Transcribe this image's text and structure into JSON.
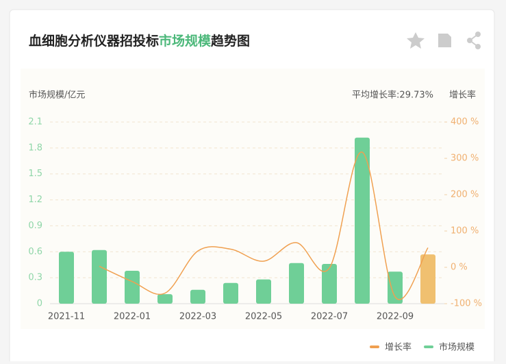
{
  "chart_data": {
    "type": "bar-line",
    "title": {
      "prefix": "血细胞分析仪器招投标",
      "highlight": "市场规模",
      "suffix": "趋势图"
    },
    "y_label": "市场规模/亿元",
    "y2_label": "增长率",
    "annotation": "平均增长率:29.73%",
    "categories": [
      "2021-11",
      null,
      "2022-01",
      null,
      "2022-03",
      null,
      "2022-05",
      null,
      "2022-07",
      null,
      "2022-09",
      null
    ],
    "series": [
      {
        "name": "市场规模",
        "type": "bar",
        "color": "#6fcf97",
        "colors": [
          "#6fcf97",
          "#6fcf97",
          "#6fcf97",
          "#6fcf97",
          "#6fcf97",
          "#6fcf97",
          "#6fcf97",
          "#6fcf97",
          "#6fcf97",
          "#6fcf97",
          "#6fcf97",
          "#f0c070"
        ],
        "values": [
          0.6,
          0.62,
          0.38,
          0.11,
          0.16,
          0.24,
          0.28,
          0.47,
          0.46,
          1.92,
          0.37,
          0.57
        ]
      },
      {
        "name": "增长率",
        "type": "line",
        "axis": "y2",
        "color": "#f0a050",
        "values": [
          null,
          3,
          -39,
          -71,
          45,
          50,
          17,
          68,
          -2,
          317,
          -81,
          54
        ]
      }
    ],
    "ylim": [
      0,
      2.1
    ],
    "yticks": [
      0,
      0.3,
      0.6,
      0.9,
      1.2,
      1.5,
      1.8,
      2.1
    ],
    "y2lim": [
      -100,
      400
    ],
    "y2ticks": [
      {
        "value": -100,
        "label": "-100 %"
      },
      {
        "value": 0,
        "label": "0 %"
      },
      {
        "value": 100,
        "label": "100 %"
      },
      {
        "value": 200,
        "label": "200 %"
      },
      {
        "value": 300,
        "label": "300 %"
      },
      {
        "value": 400,
        "label": "400 %"
      }
    ],
    "grid": true,
    "legend": "bottom-right"
  }
}
